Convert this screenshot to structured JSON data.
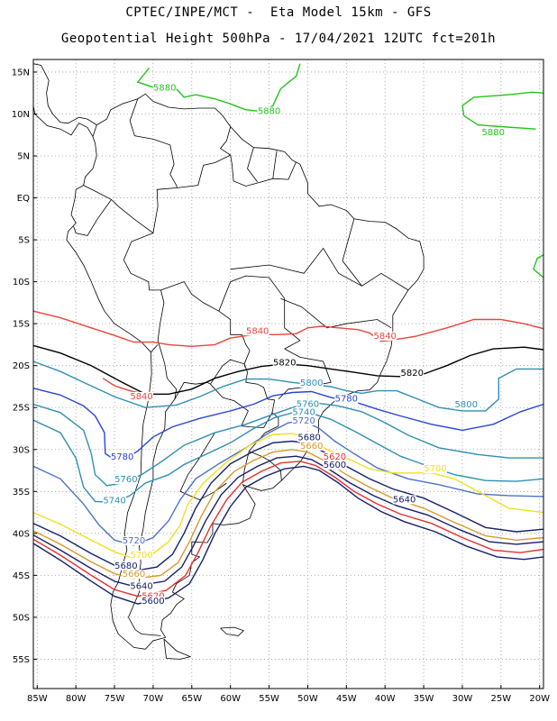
{
  "header": {
    "title_line1": "CPTEC/INPE/MCT -  Eta Model 15km - GFS",
    "title_line2": "Geopotential Height 500hPa - 17/04/2021 12UTC fct=201h"
  },
  "map": {
    "lat_labels": [
      "15N",
      "10N",
      "5N",
      "EQ",
      "5S",
      "10S",
      "15S",
      "20S",
      "25S",
      "30S",
      "35S",
      "40S",
      "45S",
      "50S",
      "55S"
    ],
    "lon_labels": [
      "85W",
      "80W",
      "75W",
      "70W",
      "65W",
      "60W",
      "55W",
      "50W",
      "45W",
      "40W",
      "35W",
      "30W",
      "25W",
      "20W"
    ],
    "grid": true,
    "frame_color": "#000000",
    "grid_color": "#9a9a9a",
    "land_outline_color": "#000000"
  },
  "contours": [
    {
      "value": "5880",
      "color": "#22c41e"
    },
    {
      "value": "5840",
      "color": "#e8463c"
    },
    {
      "value": "5820",
      "color": "#000000"
    },
    {
      "value": "5800",
      "color": "#2f8fb4"
    },
    {
      "value": "5780",
      "color": "#2846d8"
    },
    {
      "value": "5760",
      "color": "#2f8fb4"
    },
    {
      "value": "5740",
      "color": "#2f8fb4"
    },
    {
      "value": "5720",
      "color": "#4a72c8"
    },
    {
      "value": "5700",
      "color": "#f0e020"
    },
    {
      "value": "5680",
      "color": "#15206a"
    },
    {
      "value": "5660",
      "color": "#d89a2a"
    },
    {
      "value": "5620",
      "color": "#e83030"
    },
    {
      "value": "5600",
      "color": "#15206a"
    },
    {
      "value": "5640",
      "color": "#15206a"
    }
  ],
  "contour_labels": [
    {
      "text": "5880",
      "color": "#22c41e",
      "lon": -68.5,
      "lat": 12.8
    },
    {
      "text": "5880",
      "color": "#22c41e",
      "lon": -55.0,
      "lat": 10.0
    },
    {
      "text": "5880",
      "color": "#22c41e",
      "lon": -26.0,
      "lat": 7.5
    },
    {
      "text": "5840",
      "color": "#e8463c",
      "lon": -56.5,
      "lat": -16.2
    },
    {
      "text": "5840",
      "color": "#e8463c",
      "lon": -40.0,
      "lat": -16.8
    },
    {
      "text": "5840",
      "color": "#e8463c",
      "lon": -71.5,
      "lat": -24.0
    },
    {
      "text": "5820",
      "color": "#000000",
      "lon": -53.0,
      "lat": -20.0
    },
    {
      "text": "5820",
      "color": "#000000",
      "lon": -36.5,
      "lat": -21.2
    },
    {
      "text": "5800",
      "color": "#2f8fb4",
      "lon": -49.5,
      "lat": -22.4
    },
    {
      "text": "5800",
      "color": "#2f8fb4",
      "lon": -29.5,
      "lat": -25.0
    },
    {
      "text": "5780",
      "color": "#2846d8",
      "lon": -45.0,
      "lat": -24.3
    },
    {
      "text": "5780",
      "color": "#2846d8",
      "lon": -74.0,
      "lat": -31.2
    },
    {
      "text": "5760",
      "color": "#2f8fb4",
      "lon": -50.0,
      "lat": -24.9
    },
    {
      "text": "5760",
      "color": "#2f8fb4",
      "lon": -73.5,
      "lat": -33.9
    },
    {
      "text": "5740",
      "color": "#2f8fb4",
      "lon": -50.5,
      "lat": -25.9
    },
    {
      "text": "5740",
      "color": "#2f8fb4",
      "lon": -75.0,
      "lat": -36.4
    },
    {
      "text": "5720",
      "color": "#4a72c8",
      "lon": -50.5,
      "lat": -26.9
    },
    {
      "text": "5720",
      "color": "#4a72c8",
      "lon": -72.5,
      "lat": -41.2
    },
    {
      "text": "5700",
      "color": "#f0e020",
      "lon": -33.5,
      "lat": -32.6
    },
    {
      "text": "5700",
      "color": "#f0e020",
      "lon": -71.5,
      "lat": -42.9
    },
    {
      "text": "5680",
      "color": "#15206a",
      "lon": -49.8,
      "lat": -28.9
    },
    {
      "text": "5680",
      "color": "#15206a",
      "lon": -73.5,
      "lat": -44.2
    },
    {
      "text": "5660",
      "color": "#d89a2a",
      "lon": -49.5,
      "lat": -29.9
    },
    {
      "text": "5660",
      "color": "#d89a2a",
      "lon": -72.5,
      "lat": -45.2
    },
    {
      "text": "5620",
      "color": "#e83030",
      "lon": -46.5,
      "lat": -31.2
    },
    {
      "text": "5620",
      "color": "#e83030",
      "lon": -70.0,
      "lat": -47.8
    },
    {
      "text": "5600",
      "color": "#15206a",
      "lon": -46.5,
      "lat": -32.2
    },
    {
      "text": "5600",
      "color": "#15206a",
      "lon": -70.0,
      "lat": -48.4
    },
    {
      "text": "5640",
      "color": "#15206a",
      "lon": -37.5,
      "lat": -36.3
    },
    {
      "text": "5640",
      "color": "#15206a",
      "lon": -71.5,
      "lat": -46.6
    }
  ]
}
